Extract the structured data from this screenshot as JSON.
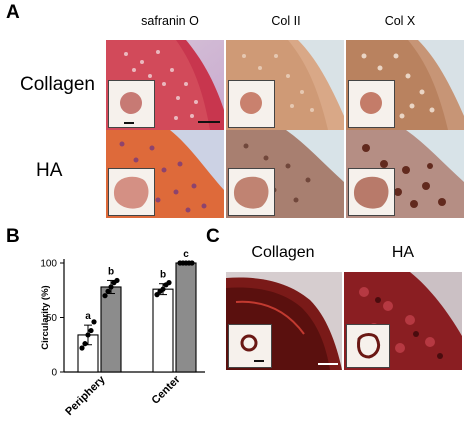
{
  "panels": {
    "a": {
      "letter": "A",
      "columns": [
        "safranin O",
        "Col II",
        "Col X"
      ],
      "rows": [
        "Collagen",
        "HA"
      ]
    },
    "b": {
      "letter": "B"
    },
    "c": {
      "letter": "C",
      "columns": [
        "Collagen",
        "HA"
      ]
    }
  },
  "chart_data": {
    "type": "bar",
    "ylabel": "Circularity (%)",
    "ylim": [
      0,
      100
    ],
    "yticks": [
      0,
      50,
      100
    ],
    "groups": [
      "Periphery",
      "Center"
    ],
    "series": [
      {
        "values": [
          34,
          76
        ],
        "errors": [
          9,
          5
        ],
        "points": [
          [
            22,
            26,
            34,
            38,
            46
          ],
          [
            71,
            74,
            76,
            80,
            82
          ]
        ],
        "color": "#ffffff"
      },
      {
        "values": [
          78,
          100
        ],
        "errors": [
          6,
          0
        ],
        "points": [
          [
            70,
            74,
            78,
            82,
            84
          ],
          [
            100,
            100,
            100,
            100,
            100
          ]
        ],
        "color": "#8c8c8c"
      }
    ],
    "significance_letters": [
      [
        "a",
        "b"
      ],
      [
        "b",
        "c"
      ]
    ]
  }
}
